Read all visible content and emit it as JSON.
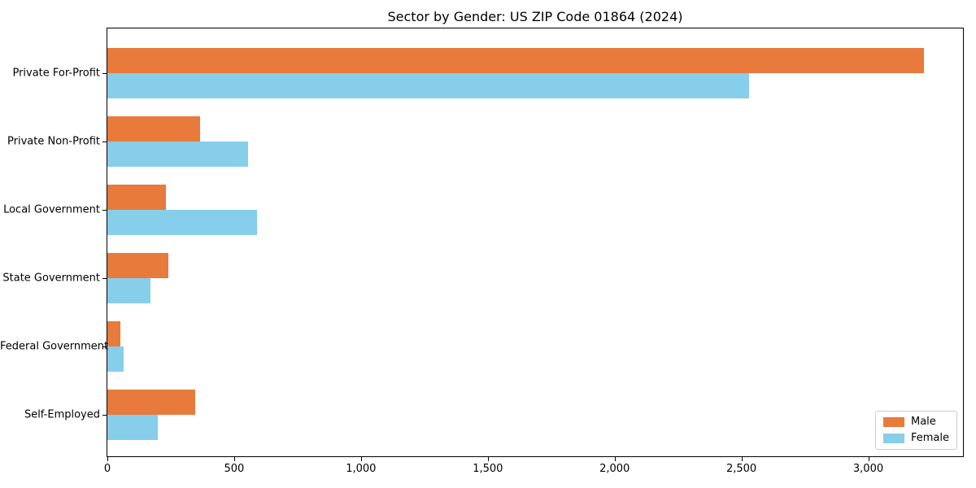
{
  "chart_data": {
    "type": "bar",
    "orientation": "horizontal",
    "title": "Sector by Gender: US ZIP Code 01864 (2024)",
    "categories": [
      "Private For-Profit",
      "Private Non-Profit",
      "Local Government",
      "State Government",
      "Federal Government",
      "Self-Employed"
    ],
    "series": [
      {
        "name": "Male",
        "color": "#e87a3c",
        "values": [
          3220,
          365,
          230,
          240,
          50,
          345
        ]
      },
      {
        "name": "Female",
        "color": "#87ceeb",
        "values": [
          2530,
          555,
          590,
          170,
          65,
          200
        ]
      }
    ],
    "xlabel": "",
    "ylabel": "",
    "xlim": [
      0,
      3380
    ],
    "xticks": {
      "values": [
        0,
        500,
        1000,
        1500,
        2000,
        2500,
        3000
      ],
      "labels": [
        "0",
        "500",
        "1,000",
        "1,500",
        "2,000",
        "2,500",
        "3,000"
      ]
    },
    "grid": false,
    "legend": {
      "position": "lower right"
    }
  }
}
